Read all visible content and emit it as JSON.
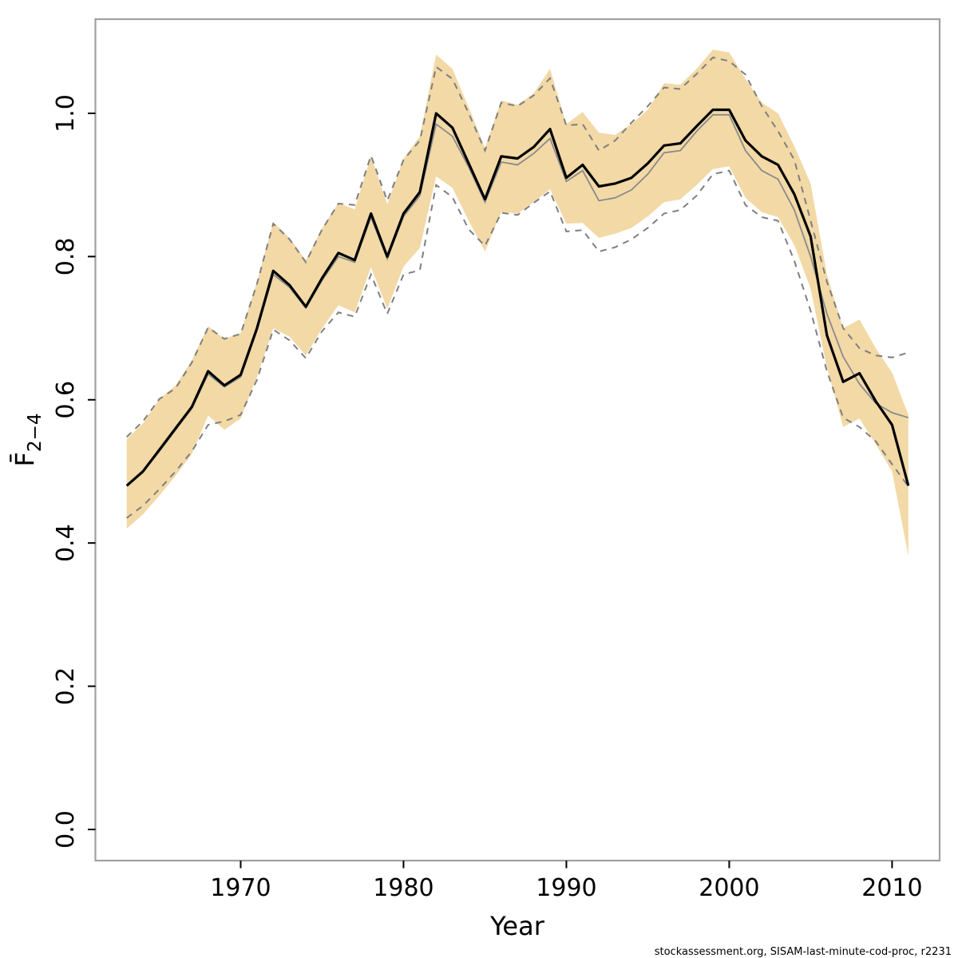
{
  "page": {
    "background": "#ffffff"
  },
  "footer": {
    "credit": "stockassessment.org, SISAM-last-minute-cod-proc, r2231"
  },
  "chart_data": {
    "type": "line",
    "title": "",
    "xlabel": "Year",
    "ylabel": {
      "main": "F̄",
      "sub": "2−4"
    },
    "grid": false,
    "legend": "none",
    "xlim": [
      1961.08,
      2012.92
    ],
    "ylim": [
      -0.0435,
      1.1315
    ],
    "x_ticks": [
      {
        "value": 1970,
        "label": "1970"
      },
      {
        "value": 1980,
        "label": "1980"
      },
      {
        "value": 1990,
        "label": "1990"
      },
      {
        "value": 2000,
        "label": "2000"
      },
      {
        "value": 2010,
        "label": "2010"
      }
    ],
    "y_ticks": [
      {
        "value": 0.0,
        "label": "0.0"
      },
      {
        "value": 0.2,
        "label": "0.2"
      },
      {
        "value": 0.4,
        "label": "0.4"
      },
      {
        "value": 0.6,
        "label": "0.6"
      },
      {
        "value": 0.8,
        "label": "0.8"
      },
      {
        "value": 1.0,
        "label": "1.0"
      }
    ],
    "colors": {
      "band_fill": "#f2d9a6",
      "dashed_ci": "#7f7f7f",
      "comparison_line": "#8a8a8a",
      "estimate_line": "#000000",
      "plot_border": "#a0a0a0",
      "tick": "#000000"
    },
    "years": [
      1963,
      1964,
      1965,
      1966,
      1967,
      1968,
      1969,
      1970,
      1971,
      1972,
      1973,
      1974,
      1975,
      1976,
      1977,
      1978,
      1979,
      1980,
      1981,
      1982,
      1983,
      1984,
      1985,
      1986,
      1987,
      1988,
      1989,
      1990,
      1991,
      1992,
      1993,
      1994,
      1995,
      1996,
      1997,
      1998,
      1999,
      2000,
      2001,
      2002,
      2003,
      2004,
      2005,
      2006,
      2007,
      2008,
      2009,
      2010,
      2011
    ],
    "series": [
      {
        "name": "F estimate (solid black line)",
        "style": "solid",
        "values": [
          0.48,
          0.5,
          0.53,
          0.56,
          0.59,
          0.64,
          0.62,
          0.635,
          0.7,
          0.78,
          0.76,
          0.73,
          0.77,
          0.805,
          0.795,
          0.86,
          0.8,
          0.86,
          0.89,
          1.0,
          0.98,
          0.93,
          0.88,
          0.94,
          0.937,
          0.953,
          0.978,
          0.91,
          0.928,
          0.898,
          0.902,
          0.91,
          0.93,
          0.955,
          0.958,
          0.982,
          1.005,
          1.005,
          0.962,
          0.94,
          0.928,
          0.887,
          0.828,
          0.69,
          0.625,
          0.637,
          0.598,
          0.565,
          0.48
        ]
      },
      {
        "name": "F estimate, comparison run (thin grey line)",
        "style": "solid",
        "values": [
          0.48,
          0.5,
          0.528,
          0.558,
          0.588,
          0.636,
          0.618,
          0.632,
          0.697,
          0.775,
          0.757,
          0.728,
          0.767,
          0.8,
          0.792,
          0.855,
          0.797,
          0.856,
          0.885,
          0.985,
          0.968,
          0.925,
          0.876,
          0.932,
          0.928,
          0.944,
          0.965,
          0.905,
          0.92,
          0.878,
          0.882,
          0.893,
          0.915,
          0.945,
          0.948,
          0.975,
          0.998,
          0.998,
          0.948,
          0.92,
          0.908,
          0.865,
          0.8,
          0.72,
          0.66,
          0.622,
          0.595,
          0.582,
          0.575
        ]
      }
    ],
    "band": {
      "name": "confidence band of black estimate (shaded)",
      "upper": [
        0.545,
        0.567,
        0.601,
        0.62,
        0.655,
        0.703,
        0.685,
        0.693,
        0.765,
        0.848,
        0.826,
        0.795,
        0.84,
        0.875,
        0.866,
        0.94,
        0.873,
        0.937,
        0.968,
        1.082,
        1.062,
        1.008,
        0.952,
        1.018,
        1.012,
        1.028,
        1.062,
        0.985,
        1.002,
        0.973,
        0.97,
        0.985,
        1.005,
        1.042,
        1.04,
        1.062,
        1.089,
        1.085,
        1.048,
        1.015,
        1.0,
        0.954,
        0.902,
        0.775,
        0.7,
        0.712,
        0.672,
        0.638,
        0.579
      ],
      "lower": [
        0.42,
        0.44,
        0.466,
        0.494,
        0.524,
        0.578,
        0.558,
        0.574,
        0.632,
        0.7,
        0.688,
        0.662,
        0.7,
        0.732,
        0.722,
        0.785,
        0.727,
        0.786,
        0.812,
        0.912,
        0.896,
        0.85,
        0.807,
        0.862,
        0.86,
        0.876,
        0.894,
        0.846,
        0.847,
        0.826,
        0.832,
        0.84,
        0.856,
        0.876,
        0.88,
        0.9,
        0.922,
        0.926,
        0.882,
        0.862,
        0.855,
        0.816,
        0.755,
        0.645,
        0.562,
        0.574,
        0.538,
        0.5,
        0.382
      ]
    },
    "dashed_bounds": {
      "name": "confidence bounds of comparison run (grey dashed)",
      "upper": [
        0.548,
        0.57,
        0.601,
        0.616,
        0.652,
        0.701,
        0.685,
        0.692,
        0.762,
        0.846,
        0.824,
        0.792,
        0.838,
        0.874,
        0.872,
        0.941,
        0.878,
        0.935,
        0.962,
        1.065,
        1.048,
        1.0,
        0.948,
        1.015,
        1.01,
        1.025,
        1.049,
        0.983,
        0.985,
        0.948,
        0.962,
        0.987,
        1.01,
        1.036,
        1.034,
        1.055,
        1.078,
        1.073,
        1.054,
        1.01,
        0.975,
        0.935,
        0.85,
        0.765,
        0.7,
        0.672,
        0.662,
        0.659,
        0.666
      ],
      "lower": [
        0.435,
        0.452,
        0.475,
        0.5,
        0.528,
        0.565,
        0.57,
        0.579,
        0.628,
        0.698,
        0.683,
        0.658,
        0.696,
        0.722,
        0.716,
        0.775,
        0.72,
        0.775,
        0.781,
        0.9,
        0.883,
        0.838,
        0.815,
        0.861,
        0.858,
        0.875,
        0.891,
        0.835,
        0.837,
        0.807,
        0.813,
        0.824,
        0.84,
        0.86,
        0.865,
        0.885,
        0.915,
        0.92,
        0.872,
        0.855,
        0.85,
        0.794,
        0.724,
        0.64,
        0.575,
        0.562,
        0.542,
        0.51,
        0.479
      ]
    }
  }
}
